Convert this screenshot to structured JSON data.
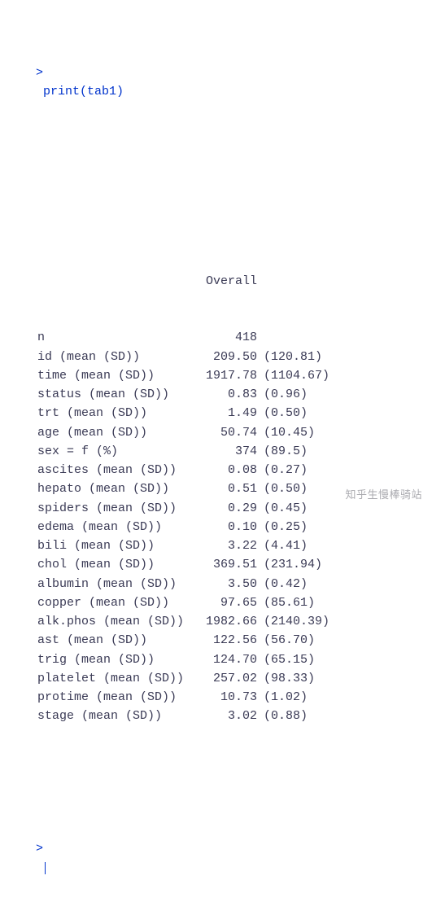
{
  "console": {
    "prompt": ">",
    "command": "print(tab1)",
    "cursor_color": "#0033cc",
    "prompt_color": "#0033cc",
    "output_color": "#3a3a55"
  },
  "table": {
    "header": "Overall",
    "col_widths": {
      "label_ch": 22,
      "value_ch": 8
    },
    "rows": [
      {
        "label": "n",
        "value": "418",
        "sd": ""
      },
      {
        "label": "id (mean (SD))",
        "value": "209.50",
        "sd": "(120.81)"
      },
      {
        "label": "time (mean (SD))",
        "value": "1917.78",
        "sd": "(1104.67)"
      },
      {
        "label": "status (mean (SD))",
        "value": "0.83",
        "sd": "(0.96)"
      },
      {
        "label": "trt (mean (SD))",
        "value": "1.49",
        "sd": "(0.50)"
      },
      {
        "label": "age (mean (SD))",
        "value": "50.74",
        "sd": "(10.45)"
      },
      {
        "label": "sex = f (%)",
        "value": "374",
        "sd": "(89.5)"
      },
      {
        "label": "ascites (mean (SD))",
        "value": "0.08",
        "sd": "(0.27)"
      },
      {
        "label": "hepato (mean (SD))",
        "value": "0.51",
        "sd": "(0.50)"
      },
      {
        "label": "spiders (mean (SD))",
        "value": "0.29",
        "sd": "(0.45)"
      },
      {
        "label": "edema (mean (SD))",
        "value": "0.10",
        "sd": "(0.25)"
      },
      {
        "label": "bili (mean (SD))",
        "value": "3.22",
        "sd": "(4.41)"
      },
      {
        "label": "chol (mean (SD))",
        "value": "369.51",
        "sd": "(231.94)"
      },
      {
        "label": "albumin (mean (SD))",
        "value": "3.50",
        "sd": "(0.42)"
      },
      {
        "label": "copper (mean (SD))",
        "value": "97.65",
        "sd": "(85.61)"
      },
      {
        "label": "alk.phos (mean (SD))",
        "value": "1982.66",
        "sd": "(2140.39)"
      },
      {
        "label": "ast (mean (SD))",
        "value": "122.56",
        "sd": "(56.70)"
      },
      {
        "label": "trig (mean (SD))",
        "value": "124.70",
        "sd": "(65.15)"
      },
      {
        "label": "platelet (mean (SD))",
        "value": "257.02",
        "sd": "(98.33)"
      },
      {
        "label": "protime (mean (SD))",
        "value": "10.73",
        "sd": "(1.02)"
      },
      {
        "label": "stage (mean (SD))",
        "value": "3.02",
        "sd": "(0.88)"
      }
    ]
  },
  "watermark": "知乎生慢棒骑站"
}
